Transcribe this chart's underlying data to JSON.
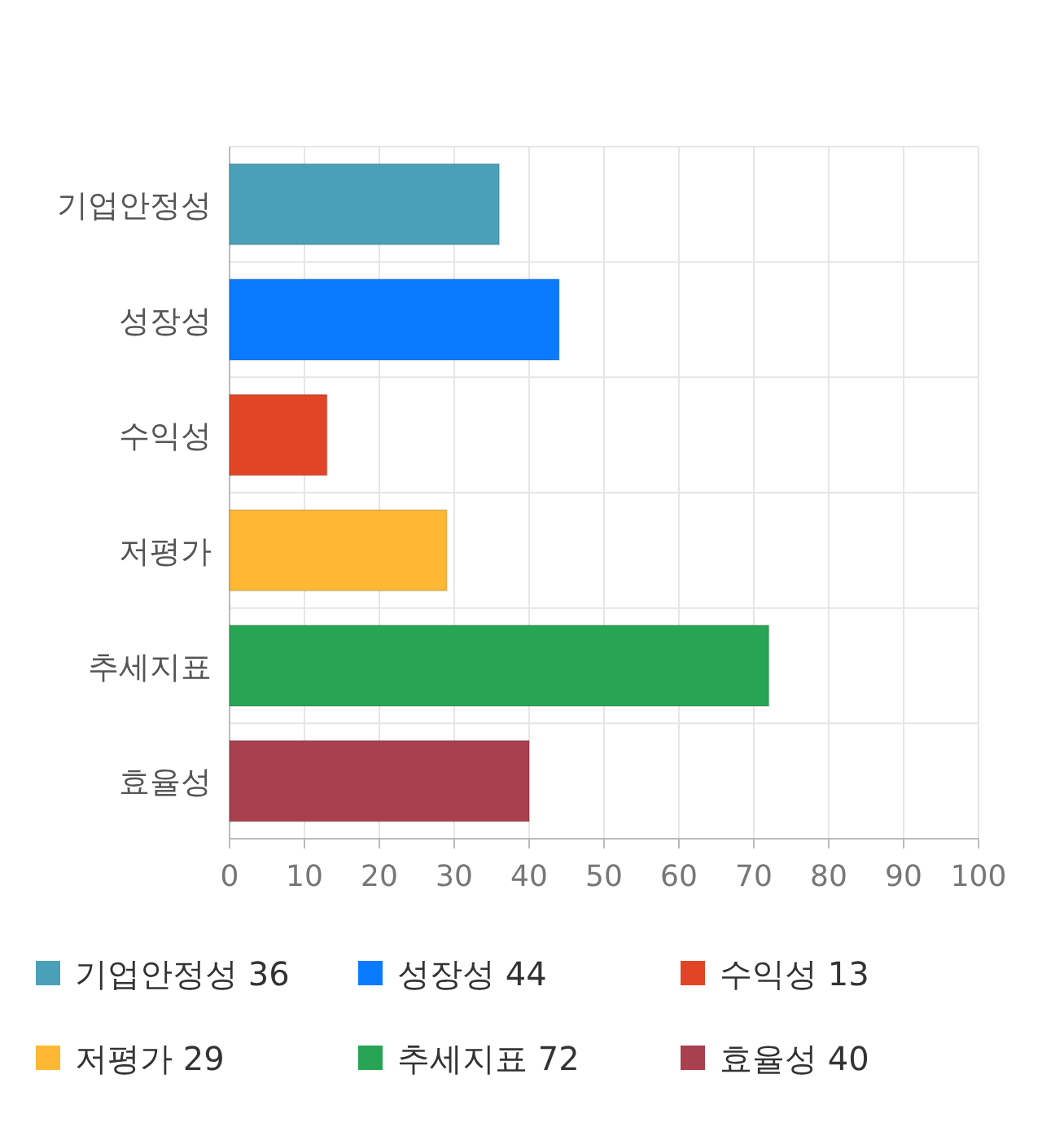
{
  "chart_data": {
    "type": "bar",
    "orientation": "horizontal",
    "stacked": true,
    "categories": [
      "기업안정성",
      "성장성",
      "수익성",
      "저평가",
      "추세지표",
      "효율성"
    ],
    "series": [
      {
        "name": "기업안정성 36",
        "color": "#4aa0b8",
        "values": [
          36,
          null,
          null,
          null,
          null,
          null
        ]
      },
      {
        "name": "성장성 44",
        "color": "#0a7bff",
        "values": [
          null,
          44,
          null,
          null,
          null,
          null
        ]
      },
      {
        "name": "수익성 13",
        "color": "#e24525",
        "values": [
          null,
          null,
          13,
          null,
          null,
          null
        ]
      },
      {
        "name": "저평가 29",
        "color": "#ffb833",
        "values": [
          null,
          null,
          null,
          29,
          null,
          null
        ]
      },
      {
        "name": "추세지표 72",
        "color": "#28a554",
        "values": [
          null,
          null,
          null,
          null,
          72,
          null
        ]
      },
      {
        "name": "효율성 40",
        "color": "#a8404e",
        "values": [
          null,
          null,
          null,
          null,
          null,
          40
        ]
      }
    ],
    "xlim": [
      0,
      100
    ],
    "xticks": [
      0,
      10,
      20,
      30,
      40,
      50,
      60,
      70,
      80,
      90,
      100
    ],
    "grid": true,
    "legend": "bottom"
  }
}
